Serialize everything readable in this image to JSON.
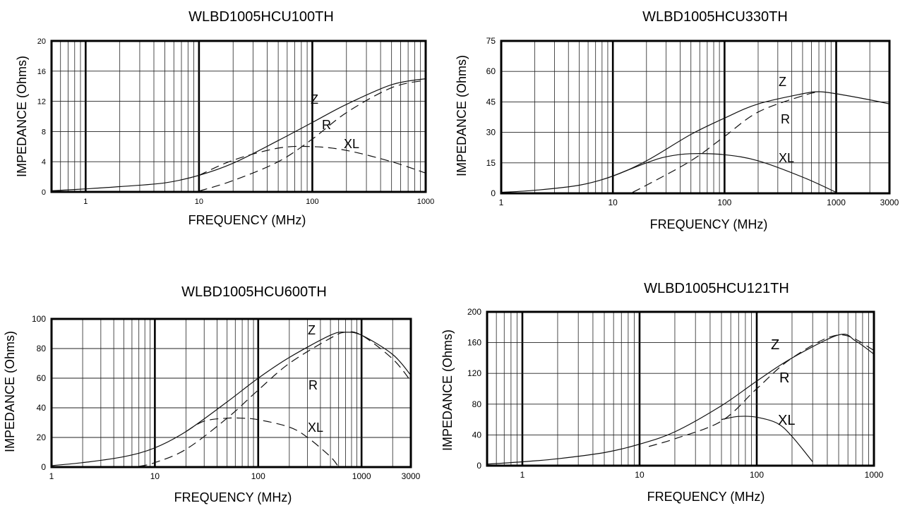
{
  "chart_data": [
    {
      "type": "line",
      "title": "WLBD1005HCU100TH",
      "xlabel": "FREQUENCY  (MHz)",
      "ylabel": "IMPEDANCE  (Ohms)",
      "x_scale": "log",
      "xlim": [
        0.5,
        1000
      ],
      "ylim": [
        0,
        20
      ],
      "x_ticks": [
        1,
        10,
        100,
        1000
      ],
      "x_tick_labels": [
        "1",
        "10",
        "100",
        "1000"
      ],
      "y_ticks": [
        0,
        4,
        8,
        12,
        16,
        20
      ],
      "y_tick_labels": [
        "0",
        "4",
        "8",
        "12",
        "16",
        "20"
      ],
      "grid": true,
      "legend": "inline labels",
      "series": [
        {
          "name": "Z",
          "style": "solid",
          "x": [
            0.5,
            1,
            2,
            5,
            10,
            20,
            50,
            100,
            200,
            500,
            1000
          ],
          "y": [
            0.15,
            0.4,
            0.7,
            1.2,
            2.2,
            3.8,
            6.8,
            9.2,
            11.6,
            14.2,
            15.0
          ]
        },
        {
          "name": "R",
          "style": "dashed",
          "x": [
            10,
            20,
            50,
            100,
            200,
            500,
            1000
          ],
          "y": [
            0.1,
            1.5,
            4.0,
            7.0,
            10.5,
            13.8,
            14.8
          ]
        },
        {
          "name": "XL",
          "style": "dashed",
          "x": [
            10,
            20,
            50,
            100,
            200,
            500,
            1000
          ],
          "y": [
            2.2,
            4.2,
            5.8,
            6.0,
            5.5,
            4.0,
            2.5
          ]
        }
      ]
    },
    {
      "type": "line",
      "title": "WLBD1005HCU330TH",
      "xlabel": "FREQUENCY  (MHz)",
      "ylabel": "IMPEDANCE  (Ohms)",
      "x_scale": "log",
      "xlim": [
        1,
        3000
      ],
      "ylim": [
        0,
        75
      ],
      "x_ticks": [
        1,
        10,
        100,
        1000,
        3000
      ],
      "x_tick_labels": [
        "1",
        "10",
        "100",
        "1000",
        "3000"
      ],
      "y_ticks": [
        0,
        15,
        30,
        45,
        60,
        75
      ],
      "y_tick_labels": [
        "0",
        "15",
        "30",
        "45",
        "60",
        "75"
      ],
      "grid": true,
      "legend": "inline labels",
      "series": [
        {
          "name": "Z",
          "style": "solid",
          "x": [
            1,
            2,
            5,
            10,
            20,
            50,
            100,
            200,
            500,
            700,
            1000,
            2000,
            3000
          ],
          "y": [
            0.5,
            1.5,
            4.0,
            8.5,
            16.0,
            29.0,
            37.0,
            44.0,
            49.0,
            50.0,
            49.0,
            46.0,
            44.0
          ]
        },
        {
          "name": "R",
          "style": "dashed",
          "x": [
            15,
            20,
            50,
            100,
            200,
            500,
            700
          ],
          "y": [
            0.5,
            4.0,
            16.0,
            28.0,
            40.0,
            48.0,
            50.0
          ]
        },
        {
          "name": "XL",
          "style": "solid",
          "x": [
            10,
            20,
            30,
            50,
            100,
            200,
            500,
            1000
          ],
          "y": [
            8.5,
            15.0,
            18.0,
            19.5,
            19.0,
            16.0,
            8.0,
            0.5
          ]
        }
      ]
    },
    {
      "type": "line",
      "title": "WLBD1005HCU600TH",
      "xlabel": "FREQUENCY  (MHz)",
      "ylabel": "IMPEDANCE  (Ohms)",
      "x_scale": "log",
      "xlim": [
        1,
        3000
      ],
      "ylim": [
        0,
        100
      ],
      "x_ticks": [
        1,
        10,
        100,
        1000,
        3000
      ],
      "x_tick_labels": [
        "1",
        "10",
        "100",
        "1000",
        "3000"
      ],
      "y_ticks": [
        0,
        20,
        40,
        60,
        80,
        100
      ],
      "y_tick_labels": [
        "0",
        "20",
        "40",
        "60",
        "80",
        "100"
      ],
      "grid": true,
      "legend": "inline labels",
      "series": [
        {
          "name": "Z",
          "style": "solid",
          "x": [
            1,
            2,
            5,
            10,
            20,
            50,
            100,
            200,
            500,
            700,
            1000,
            2000,
            3000
          ],
          "y": [
            1.0,
            3.0,
            7.0,
            13.0,
            24.0,
            44.0,
            60.0,
            74.0,
            89.0,
            91.0,
            89.0,
            76.0,
            62.0
          ]
        },
        {
          "name": "R",
          "style": "dashed",
          "x": [
            7,
            10,
            20,
            50,
            100,
            200,
            500,
            700,
            1000,
            2000,
            3000
          ],
          "y": [
            0.5,
            3.0,
            12.0,
            33.0,
            52.0,
            70.0,
            87.0,
            91.0,
            89.0,
            73.0,
            58.0
          ]
        },
        {
          "name": "XL",
          "style": "dashed",
          "x": [
            20,
            30,
            50,
            70,
            100,
            200,
            300,
            500,
            600
          ],
          "y": [
            24.0,
            31.0,
            33.0,
            33.0,
            32.0,
            27.0,
            20.0,
            7.0,
            0.0
          ]
        }
      ]
    },
    {
      "type": "line",
      "title": "WLBD1005HCU121TH",
      "xlabel": "FREQUENCY  (MHz)",
      "ylabel": "IMPEDANCE  (Ohms)",
      "x_scale": "log",
      "xlim": [
        0.5,
        1000
      ],
      "ylim": [
        0,
        200
      ],
      "x_ticks": [
        1,
        10,
        100,
        1000
      ],
      "x_tick_labels": [
        "1",
        "10",
        "100",
        "1000"
      ],
      "y_ticks": [
        0,
        40,
        80,
        120,
        160,
        200
      ],
      "y_tick_labels": [
        "0",
        "40",
        "80",
        "120",
        "160",
        "200"
      ],
      "grid": true,
      "legend": "inline labels",
      "series": [
        {
          "name": "Z",
          "style": "solid",
          "x": [
            0.5,
            1,
            2,
            5,
            10,
            20,
            50,
            100,
            200,
            500,
            700,
            1000
          ],
          "y": [
            2.0,
            5.0,
            9.0,
            17.0,
            28.0,
            44.0,
            78.0,
            110.0,
            140.0,
            170.0,
            162.0,
            145.0
          ]
        },
        {
          "name": "R",
          "style": "dashed",
          "x": [
            12,
            20,
            50,
            100,
            200,
            500,
            1000
          ],
          "y": [
            25.0,
            35.0,
            58.0,
            100.0,
            140.0,
            170.0,
            150.0
          ]
        },
        {
          "name": "XL",
          "style": "solid",
          "x": [
            50,
            70,
            100,
            150,
            200,
            300
          ],
          "y": [
            60.0,
            64.0,
            63.0,
            55.0,
            38.0,
            5.0
          ]
        }
      ]
    }
  ]
}
